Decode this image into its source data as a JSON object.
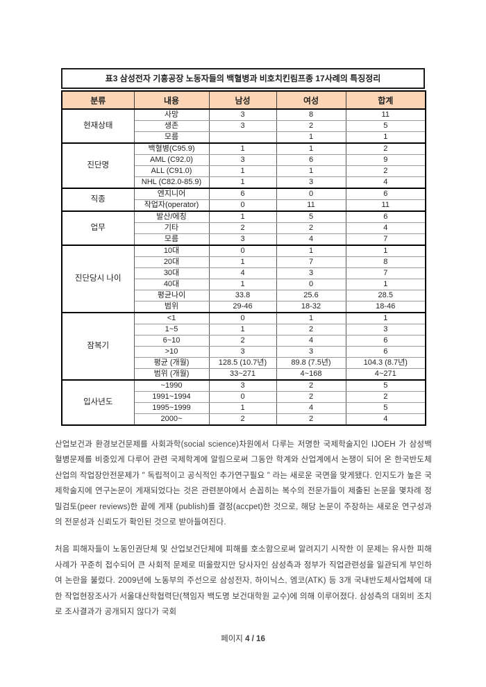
{
  "table": {
    "title": "표3 삼성전자 기흥공장 노동자들의 백혈병과 비호치킨림프종 17사례의 특징정리",
    "headers": [
      "분류",
      "내용",
      "남성",
      "여성",
      "합계"
    ],
    "header_bg": "#FBD5B5",
    "groups": [
      {
        "category": "현재상태",
        "rows": [
          [
            "사망",
            "3",
            "8",
            "11"
          ],
          [
            "생존",
            "3",
            "2",
            "5"
          ],
          [
            "모름",
            "",
            "1",
            "1"
          ]
        ]
      },
      {
        "category": "진단명",
        "rows": [
          [
            "백혈병(C95.9)",
            "1",
            "1",
            "2"
          ],
          [
            "AML (C92.0)",
            "3",
            "6",
            "9"
          ],
          [
            "ALL (C91.0)",
            "1",
            "1",
            "2"
          ],
          [
            "NHL (C82.0-85.9)",
            "1",
            "3",
            "4"
          ]
        ]
      },
      {
        "category": "직종",
        "rows": [
          [
            "엔지니어",
            "6",
            "0",
            "6"
          ],
          [
            "작업자(operator)",
            "0",
            "11",
            "11"
          ]
        ]
      },
      {
        "category": "업무",
        "rows": [
          [
            "발산/에칭",
            "1",
            "5",
            "6"
          ],
          [
            "기타",
            "2",
            "2",
            "4"
          ],
          [
            "모름",
            "3",
            "4",
            "7"
          ]
        ]
      },
      {
        "category": "진단당시 나이",
        "rows": [
          [
            "10대",
            "0",
            "1",
            "1"
          ],
          [
            "20대",
            "1",
            "7",
            "8"
          ],
          [
            "30대",
            "4",
            "3",
            "7"
          ],
          [
            "40대",
            "1",
            "0",
            "1"
          ],
          [
            "평균나이",
            "33.8",
            "25.6",
            "28.5"
          ],
          [
            "범위",
            "29-46",
            "18-32",
            "18-46"
          ]
        ]
      },
      {
        "category": "잠복기",
        "rows": [
          [
            "<1",
            "0",
            "1",
            "1"
          ],
          [
            "1~5",
            "1",
            "2",
            "3"
          ],
          [
            "6~10",
            "2",
            "4",
            "6"
          ],
          [
            ">10",
            "3",
            "3",
            "6"
          ],
          [
            "평균 (개월)",
            "128.5 (10.7년)",
            "89.8 (7.5년)",
            "104.3 (8.7년)"
          ],
          [
            "범위 (개월)",
            "33~271",
            "4~168",
            "4~271"
          ]
        ]
      },
      {
        "category": "입사년도",
        "rows": [
          [
            "~1990",
            "3",
            "2",
            "5"
          ],
          [
            "1991~1994",
            "0",
            "2",
            "2"
          ],
          [
            "1995~1999",
            "1",
            "4",
            "5"
          ],
          [
            "2000~",
            "2",
            "2",
            "4"
          ]
        ]
      }
    ]
  },
  "paragraphs": [
    "산업보건과 환경보건문제를 사회과학(social science)차원에서 다루는 저명한 국제학술지인 IJOEH 가 삼성백혈병문제를 비중있게 다루어 관련 국제학계에 알림으로써 그동안 학계와 산업계에서 논쟁이 되어 온 한국반도체산업의 작업장안전문제가 \" 독립적이고 공식적인 추가연구필요 \" 라는 새로운 국면을 맞게됐다. 인지도가 높은 국제학술지에 연구논문이 게재되었다는 것은 관련분야에서 손꼽히는 복수의 전문가들이 제출된 논문을 몇차례 정밀검토(peer reviews)한 끝에 게재 (publish)를 결정(accpet)한 것으로, 해당 논문이 주장하는 새로운 연구성과의 전문성과 신뢰도가 확인된 것으로 받아들여진다.",
    "처음 피해자들이 노동인권단체 및 산업보건단체에 피해를 호소함으로써 알려지기 시작한 이 문제는 유사한 피해사례가 꾸준히 접수되어 큰 사회적 문제로 떠올랐지만 당사자인 삼성측과 정부가 직업관련성을 일관되게 부인하여 논란을 불렀다. 2009년에 노동부의 주선으로 삼성전자, 하이닉스, 엠코(ATK) 등 3개 국내반도체사업체에 대한 작업현장조사가 서울대산학협력단(책임자 백도명 보건대학원 교수)에 의해 이루어졌다. 삼성측의 대외비 조치로 조사결과가 공개되지 않다가 국회"
  ],
  "footer": {
    "label": "페이지",
    "page_info": "4 / 16"
  }
}
